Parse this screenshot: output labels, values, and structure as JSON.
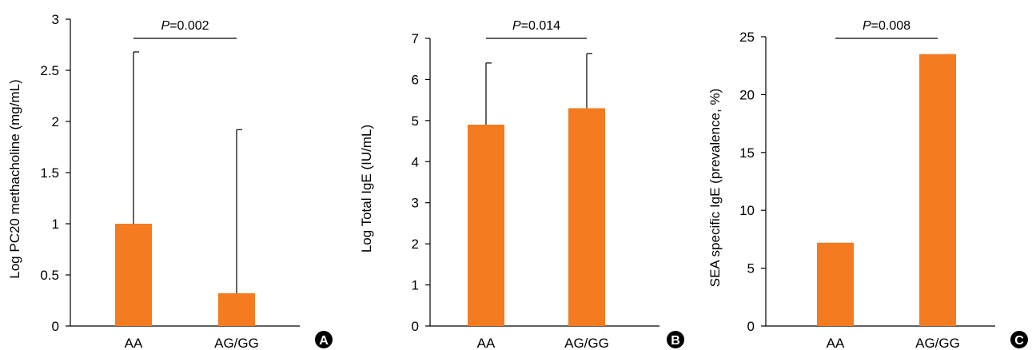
{
  "colors": {
    "bar": "#F47B20",
    "axis": "#000000",
    "badge": "#000000",
    "badge_text": "#FFFFFF"
  },
  "chart_data": [
    {
      "type": "bar",
      "panel_label": "A",
      "categories": [
        "AA",
        "AG/GG"
      ],
      "values": [
        1.0,
        0.32
      ],
      "error_upper": [
        2.68,
        1.92
      ],
      "ylabel": "Log PC20 methacholine (mg/mL)",
      "ylim": [
        0,
        3
      ],
      "yticks": [
        "0",
        "0.5",
        "1",
        "1.5",
        "2",
        "2.5",
        "3"
      ],
      "p_label": "P",
      "p_value": "=0.002"
    },
    {
      "type": "bar",
      "panel_label": "B",
      "categories": [
        "AA",
        "AG/GG"
      ],
      "values": [
        4.9,
        5.3
      ],
      "error_upper": [
        6.4,
        6.63
      ],
      "ylabel": "Log Total IgE (IU/mL)",
      "ylim": [
        0,
        7
      ],
      "yticks": [
        "0",
        "1",
        "2",
        "3",
        "4",
        "5",
        "6",
        "7"
      ],
      "p_label": "P",
      "p_value": "=0.014"
    },
    {
      "type": "bar",
      "panel_label": "C",
      "categories": [
        "AA",
        "AG/GG"
      ],
      "values": [
        7.2,
        23.5
      ],
      "error_upper": [
        null,
        null
      ],
      "ylabel": "SEA specific IgE (prevalence, %)",
      "ylim": [
        0,
        25
      ],
      "yticks": [
        "0",
        "5",
        "10",
        "15",
        "20",
        "25"
      ],
      "p_label": "P",
      "p_value": "=0.008"
    }
  ]
}
